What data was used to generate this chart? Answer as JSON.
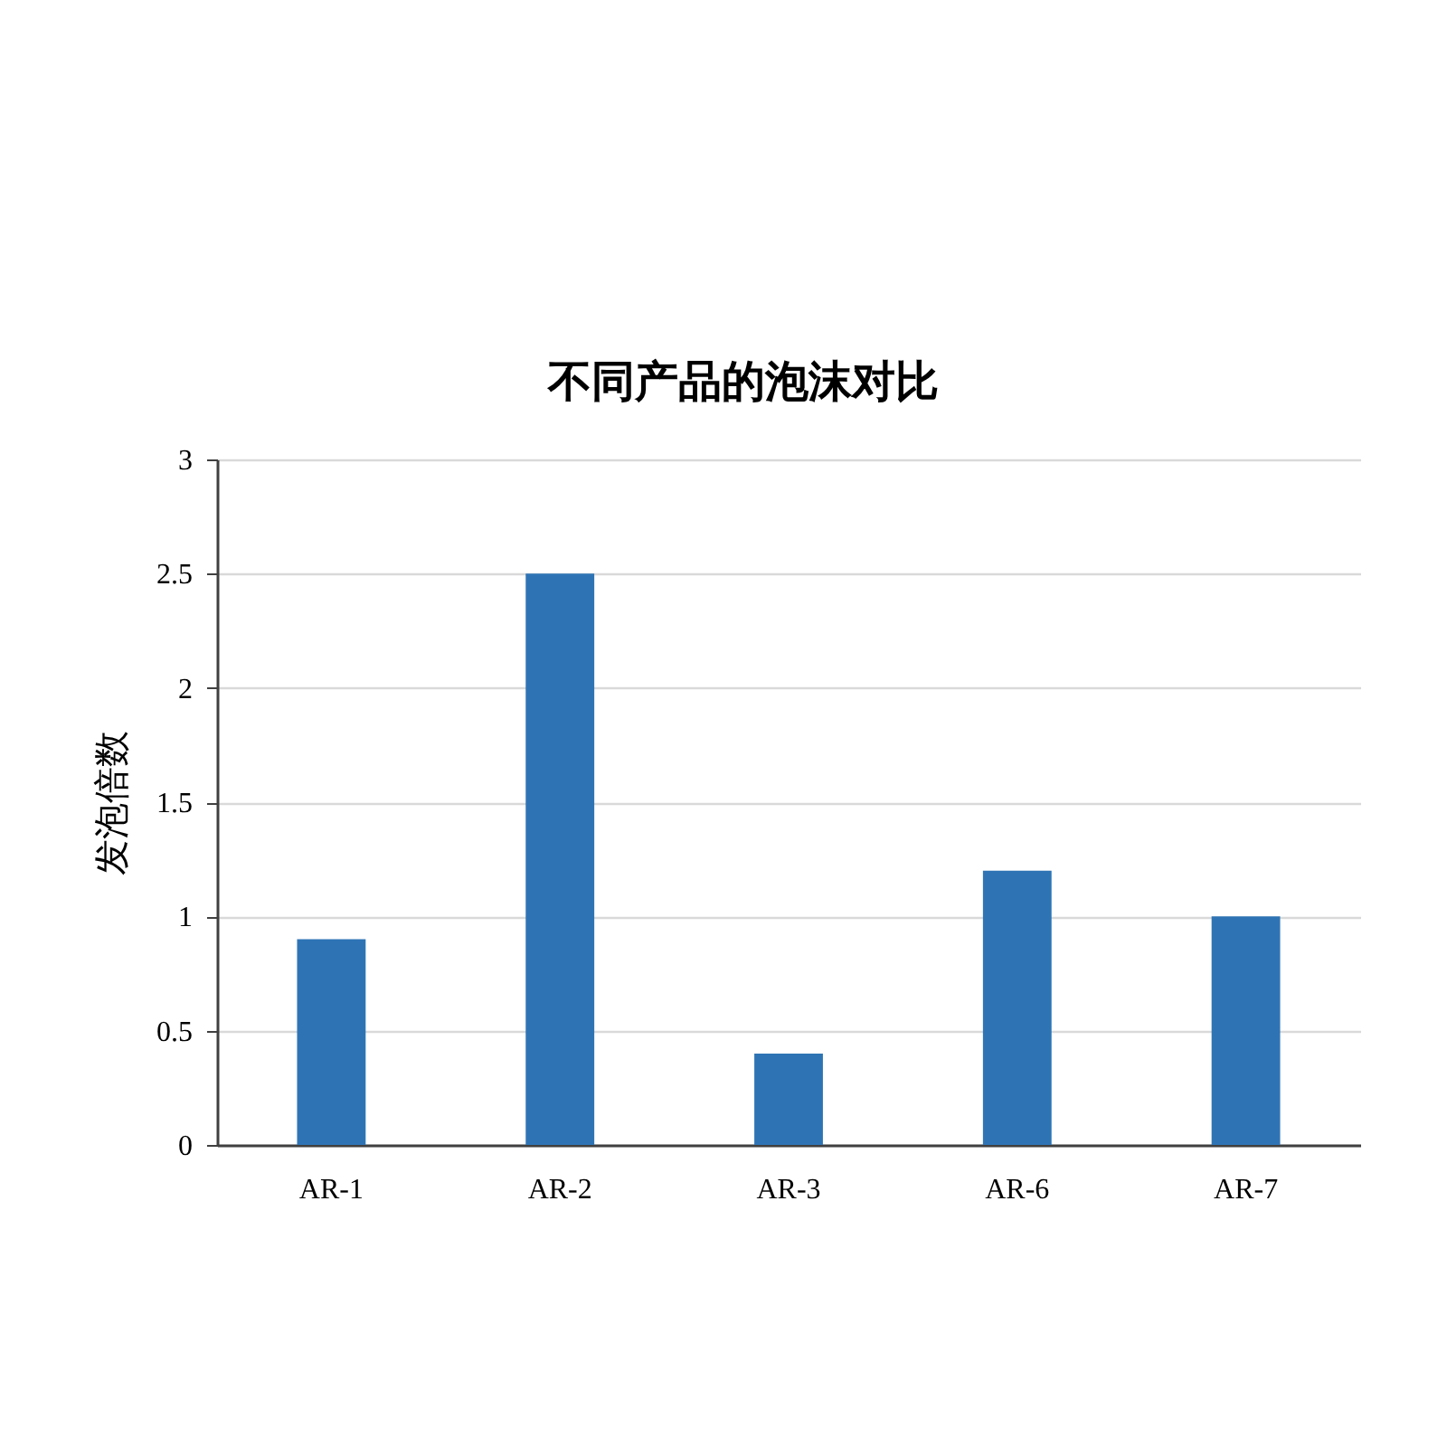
{
  "chart_data": {
    "type": "bar",
    "title": "不同产品的泡沫对比",
    "ylabel": "发泡倍数",
    "categories": [
      "AR-1",
      "AR-2",
      "AR-3",
      "AR-6",
      "AR-7"
    ],
    "values": [
      0.9,
      2.5,
      0.4,
      1.2,
      1.0
    ],
    "color": "#2e74b5",
    "ylim": [
      0,
      3
    ],
    "yticks": [
      0,
      0.5,
      1,
      1.5,
      2,
      2.5,
      3
    ],
    "grid": "y"
  }
}
